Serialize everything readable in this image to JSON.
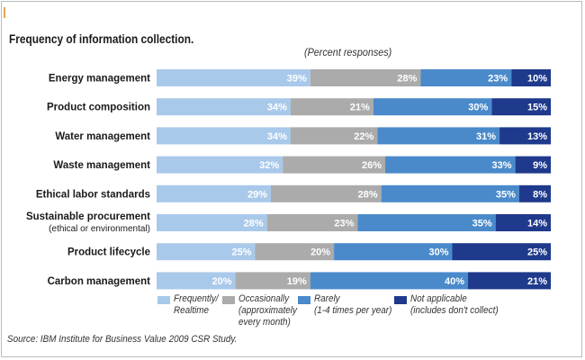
{
  "colors": {
    "frequently": "#a9c9ea",
    "occasionally": "#ababab",
    "rarely": "#4a8acb",
    "not_applicable": "#1f3a8c",
    "accent": "#e8a35a"
  },
  "chart_data": {
    "type": "bar",
    "orientation": "horizontal",
    "stacked": true,
    "title": "Frequency of information collection.",
    "subtitle": "(Percent responses)",
    "source": "Source: IBM Institute for Business Value 2009 CSR Study.",
    "categories": [
      {
        "label": "Energy management",
        "sublabel": ""
      },
      {
        "label": "Product composition",
        "sublabel": ""
      },
      {
        "label": "Water management",
        "sublabel": ""
      },
      {
        "label": "Waste management",
        "sublabel": ""
      },
      {
        "label": "Ethical labor standards",
        "sublabel": ""
      },
      {
        "label": "Sustainable procurement",
        "sublabel": "(ethical or environmental)"
      },
      {
        "label": "Product lifecycle",
        "sublabel": ""
      },
      {
        "label": "Carbon management",
        "sublabel": ""
      }
    ],
    "series": [
      {
        "key": "frequently",
        "legend": [
          "Frequently/",
          "Realtime"
        ],
        "values": [
          39,
          34,
          34,
          32,
          29,
          28,
          25,
          20
        ],
        "label_color": "#ffffff"
      },
      {
        "key": "occasionally",
        "legend": [
          "Occasionally",
          "(approximately",
          "every month)"
        ],
        "values": [
          28,
          21,
          22,
          26,
          28,
          23,
          20,
          19
        ],
        "label_color": "#ffffff"
      },
      {
        "key": "rarely",
        "legend": [
          "Rarely",
          "(1-4 times per year)"
        ],
        "values": [
          23,
          30,
          31,
          33,
          35,
          35,
          30,
          40
        ],
        "label_color": "#ffffff"
      },
      {
        "key": "not_applicable",
        "legend": [
          "Not applicable",
          "(includes don't collect)"
        ],
        "values": [
          10,
          15,
          13,
          9,
          8,
          14,
          25,
          21
        ],
        "label_color": "#ffffff"
      }
    ],
    "value_suffix": "%",
    "xlim": [
      0,
      100
    ],
    "grid": false
  }
}
